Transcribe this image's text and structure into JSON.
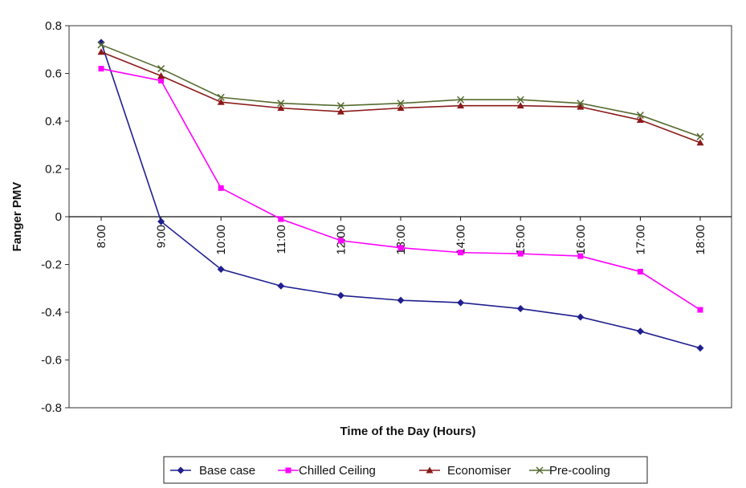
{
  "chart_data": {
    "type": "line",
    "xlabel": "Time of the Day (Hours)",
    "ylabel": "Fanger PMV",
    "ylim": [
      -0.8,
      0.8
    ],
    "yticks": [
      "0.8",
      "0.6",
      "0.4",
      "0.2",
      "0",
      "-0.2",
      "-0.4",
      "-0.6",
      "-0.8"
    ],
    "categories": [
      "8:00",
      "9:00",
      "10:00",
      "11:00",
      "12:00",
      "13:00",
      "14:00",
      "15:00",
      "16:00",
      "17:00",
      "18:00"
    ],
    "grid": false,
    "legend_position": "bottom",
    "series": [
      {
        "name": "Base case",
        "color": "#1f1f8f",
        "marker": "diamond",
        "values": [
          0.73,
          -0.02,
          -0.22,
          -0.29,
          -0.33,
          -0.35,
          -0.36,
          -0.385,
          -0.42,
          -0.48,
          -0.55
        ]
      },
      {
        "name": "Chilled Ceiling",
        "color": "#ff00ff",
        "marker": "square",
        "values": [
          0.62,
          0.57,
          0.12,
          -0.01,
          -0.1,
          -0.13,
          -0.15,
          -0.155,
          -0.165,
          -0.23,
          -0.39
        ]
      },
      {
        "name": "Economiser",
        "color": "#8b1a1a",
        "marker": "triangle",
        "values": [
          0.69,
          0.59,
          0.48,
          0.455,
          0.44,
          0.455,
          0.465,
          0.465,
          0.46,
          0.405,
          0.31
        ]
      },
      {
        "name": "Pre-cooling",
        "color": "#556b2f",
        "marker": "x",
        "values": [
          0.72,
          0.62,
          0.5,
          0.475,
          0.465,
          0.475,
          0.49,
          0.49,
          0.475,
          0.425,
          0.335
        ]
      }
    ]
  }
}
